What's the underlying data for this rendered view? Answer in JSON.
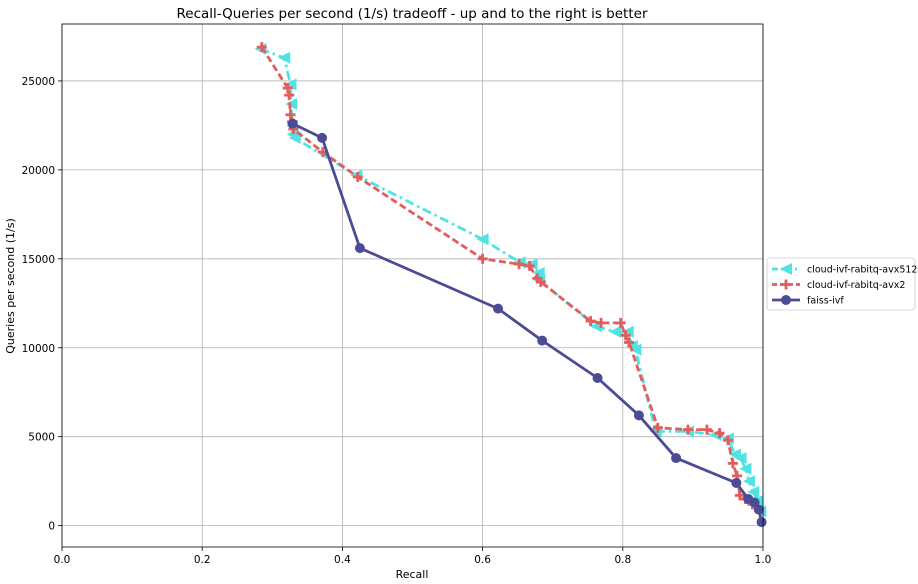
{
  "chart_data": {
    "type": "line",
    "title": "Recall-Queries per second (1/s) tradeoff - up and to the right is better",
    "xlabel": "Recall",
    "ylabel": "Queries per second (1/s)",
    "xlim": [
      0.0,
      1.0
    ],
    "ylim": [
      -1200,
      28200
    ],
    "xticks": [
      0.0,
      0.2,
      0.4,
      0.6,
      0.8,
      1.0
    ],
    "xtick_labels": [
      "0.0",
      "0.2",
      "0.4",
      "0.6",
      "0.8",
      "1.0"
    ],
    "yticks": [
      0,
      5000,
      10000,
      15000,
      20000,
      25000
    ],
    "ytick_labels": [
      "0",
      "5000",
      "10000",
      "15000",
      "20000",
      "25000"
    ],
    "grid": true,
    "legend_position": "outside-right",
    "series": [
      {
        "name": "cloud-ivf-rabitq-avx512",
        "color": "#4fe3e3",
        "dash": "dashdot",
        "marker": "triangle-left",
        "points": [
          [
            0.283,
            26800
          ],
          [
            0.317,
            26300
          ],
          [
            0.326,
            24800
          ],
          [
            0.327,
            23700
          ],
          [
            0.328,
            22500
          ],
          [
            0.329,
            22000
          ],
          [
            0.332,
            21800
          ],
          [
            0.42,
            19700
          ],
          [
            0.6,
            16100
          ],
          [
            0.653,
            14800
          ],
          [
            0.67,
            14700
          ],
          [
            0.68,
            14200
          ],
          [
            0.681,
            13800
          ],
          [
            0.762,
            11200
          ],
          [
            0.789,
            10900
          ],
          [
            0.807,
            10900
          ],
          [
            0.813,
            10100
          ],
          [
            0.818,
            9900
          ],
          [
            0.847,
            5300
          ],
          [
            0.893,
            5300
          ],
          [
            0.932,
            5100
          ],
          [
            0.95,
            4900
          ],
          [
            0.96,
            4000
          ],
          [
            0.968,
            3800
          ],
          [
            0.975,
            3200
          ],
          [
            0.98,
            2500
          ],
          [
            0.986,
            1900
          ],
          [
            0.992,
            1400
          ],
          [
            0.996,
            800
          ]
        ]
      },
      {
        "name": "cloud-ivf-rabitq-avx2",
        "color": "#e35d5d",
        "dash": "dashed",
        "marker": "plus",
        "points": [
          [
            0.285,
            26900
          ],
          [
            0.322,
            24600
          ],
          [
            0.324,
            24200
          ],
          [
            0.326,
            23100
          ],
          [
            0.328,
            22700
          ],
          [
            0.33,
            22300
          ],
          [
            0.372,
            21000
          ],
          [
            0.422,
            19600
          ],
          [
            0.6,
            15000
          ],
          [
            0.652,
            14700
          ],
          [
            0.667,
            14600
          ],
          [
            0.678,
            13900
          ],
          [
            0.683,
            13700
          ],
          [
            0.754,
            11500
          ],
          [
            0.769,
            11400
          ],
          [
            0.797,
            11400
          ],
          [
            0.804,
            10700
          ],
          [
            0.809,
            10300
          ],
          [
            0.85,
            5500
          ],
          [
            0.893,
            5400
          ],
          [
            0.92,
            5400
          ],
          [
            0.938,
            5200
          ],
          [
            0.95,
            4800
          ],
          [
            0.957,
            3500
          ],
          [
            0.963,
            2800
          ],
          [
            0.967,
            1700
          ],
          [
            0.975,
            1500
          ],
          [
            0.985,
            1200
          ]
        ]
      },
      {
        "name": "faiss-ivf",
        "color": "#4b4b96",
        "dash": "solid",
        "marker": "circle",
        "points": [
          [
            0.329,
            22600
          ],
          [
            0.371,
            21800
          ],
          [
            0.425,
            15600
          ],
          [
            0.622,
            12200
          ],
          [
            0.685,
            10400
          ],
          [
            0.764,
            8300
          ],
          [
            0.823,
            6200
          ],
          [
            0.876,
            3800
          ],
          [
            0.962,
            2400
          ],
          [
            0.979,
            1500
          ],
          [
            0.988,
            1300
          ],
          [
            0.994,
            900
          ],
          [
            0.998,
            200
          ]
        ]
      }
    ]
  }
}
